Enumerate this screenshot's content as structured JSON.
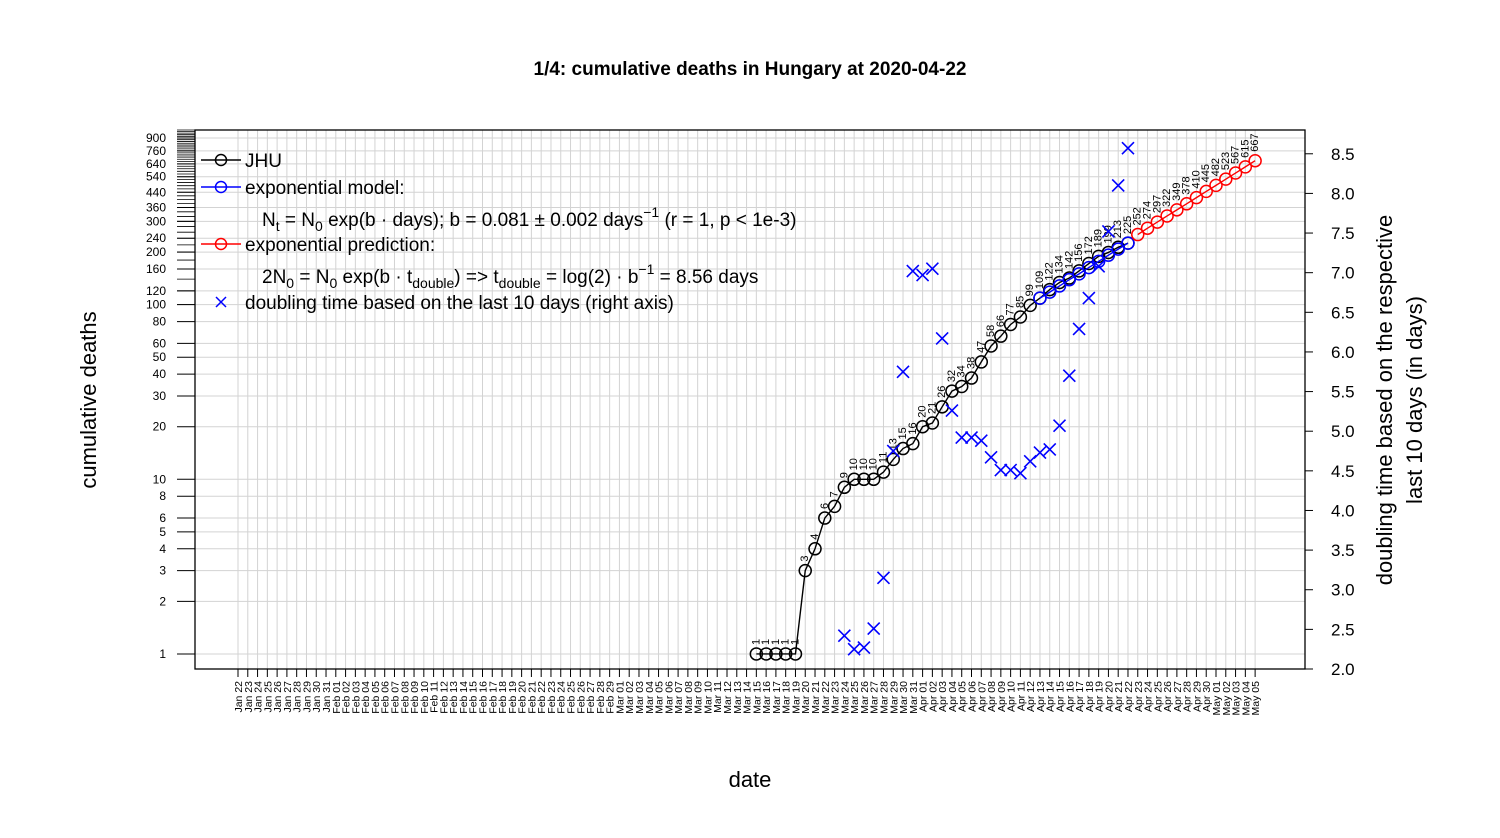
{
  "chart_data": {
    "type": "scatter",
    "title": "1/4: cumulative deaths in Hungary at 2020-04-22",
    "xlabel": "date",
    "ylabel": "cumulative deaths",
    "ylabel_right_line1": "doubling time based on the respective",
    "ylabel_right_line2": "last 10 days (in days)",
    "y_scale": "log",
    "ylim": [
      0.82,
      1000
    ],
    "y2lim": [
      2.0,
      8.8
    ],
    "grid": true,
    "legend_position": "top-left",
    "dates": [
      "Jan 22",
      "Jan 23",
      "Jan 24",
      "Jan 25",
      "Jan 26",
      "Jan 27",
      "Jan 28",
      "Jan 29",
      "Jan 30",
      "Jan 31",
      "Feb 01",
      "Feb 02",
      "Feb 03",
      "Feb 04",
      "Feb 05",
      "Feb 06",
      "Feb 07",
      "Feb 08",
      "Feb 09",
      "Feb 10",
      "Feb 11",
      "Feb 12",
      "Feb 13",
      "Feb 14",
      "Feb 15",
      "Feb 16",
      "Feb 17",
      "Feb 18",
      "Feb 19",
      "Feb 20",
      "Feb 21",
      "Feb 22",
      "Feb 23",
      "Feb 24",
      "Feb 25",
      "Feb 26",
      "Feb 27",
      "Feb 28",
      "Feb 29",
      "Mar 01",
      "Mar 02",
      "Mar 03",
      "Mar 04",
      "Mar 05",
      "Mar 06",
      "Mar 07",
      "Mar 08",
      "Mar 09",
      "Mar 10",
      "Mar 11",
      "Mar 12",
      "Mar 13",
      "Mar 14",
      "Mar 15",
      "Mar 16",
      "Mar 17",
      "Mar 18",
      "Mar 19",
      "Mar 20",
      "Mar 21",
      "Mar 22",
      "Mar 23",
      "Mar 24",
      "Mar 25",
      "Mar 26",
      "Mar 27",
      "Mar 28",
      "Mar 29",
      "Mar 30",
      "Mar 31",
      "Apr 01",
      "Apr 02",
      "Apr 03",
      "Apr 04",
      "Apr 05",
      "Apr 06",
      "Apr 07",
      "Apr 08",
      "Apr 09",
      "Apr 10",
      "Apr 11",
      "Apr 12",
      "Apr 13",
      "Apr 14",
      "Apr 15",
      "Apr 16",
      "Apr 17",
      "Apr 18",
      "Apr 19",
      "Apr 20",
      "Apr 21",
      "Apr 22",
      "Apr 23",
      "Apr 24",
      "Apr 25",
      "Apr 26",
      "Apr 27",
      "Apr 28",
      "Apr 29",
      "Apr 30",
      "May 01",
      "May 02",
      "May 03",
      "May 04",
      "May 05"
    ],
    "y_ticks": [
      1,
      2,
      3,
      4,
      5,
      6,
      8,
      10,
      20,
      30,
      40,
      50,
      60,
      80,
      100,
      120,
      160,
      200,
      240,
      300,
      360,
      440,
      540,
      640,
      760,
      900
    ],
    "y2_ticks": [
      "2.0",
      "2.5",
      "3.0",
      "3.5",
      "4.0",
      "4.5",
      "5.0",
      "5.5",
      "6.0",
      "6.5",
      "7.0",
      "7.5",
      "8.0",
      "8.5"
    ],
    "series": [
      {
        "name": "JHU",
        "color": "#000000",
        "marker": "circle",
        "x": [
          "Mar 15",
          "Mar 16",
          "Mar 17",
          "Mar 18",
          "Mar 19",
          "Mar 20",
          "Mar 21",
          "Mar 22",
          "Mar 23",
          "Mar 24",
          "Mar 25",
          "Mar 26",
          "Mar 27",
          "Mar 28",
          "Mar 29",
          "Mar 30",
          "Mar 31",
          "Apr 01",
          "Apr 02",
          "Apr 03",
          "Apr 04",
          "Apr 05",
          "Apr 06",
          "Apr 07",
          "Apr 08",
          "Apr 09",
          "Apr 10",
          "Apr 11",
          "Apr 12",
          "Apr 13",
          "Apr 14",
          "Apr 15",
          "Apr 16",
          "Apr 17",
          "Apr 18",
          "Apr 19",
          "Apr 20",
          "Apr 21",
          "Apr 22"
        ],
        "values": [
          1,
          1,
          1,
          1,
          1,
          3,
          4,
          6,
          7,
          9,
          10,
          10,
          10,
          11,
          13,
          15,
          16,
          20,
          21,
          26,
          32,
          34,
          38,
          47,
          58,
          66,
          77,
          85,
          99,
          109,
          122,
          134,
          142,
          156,
          172,
          189,
          199,
          213,
          225
        ],
        "labels": [
          "1",
          "1",
          "1",
          "1",
          "1",
          "3",
          "4",
          "6",
          "7",
          "9",
          "10",
          "10",
          "10",
          "11",
          "13",
          "15",
          "16",
          "20",
          "21",
          "26",
          "32",
          "34",
          "38",
          "47",
          "58",
          "66",
          "77",
          "85",
          "99",
          "109",
          "122",
          "134",
          "142",
          "156",
          "172",
          "189",
          "199",
          "213",
          "225"
        ]
      },
      {
        "name": "exponential model:",
        "color": "#0000ff",
        "marker": "circle",
        "x": [
          "Apr 13",
          "Apr 14",
          "Apr 15",
          "Apr 16",
          "Apr 17",
          "Apr 18",
          "Apr 19",
          "Apr 20",
          "Apr 21",
          "Apr 22"
        ],
        "values": [
          109,
          118,
          128,
          139,
          150,
          163,
          177,
          192,
          208,
          225
        ]
      },
      {
        "name": "exponential prediction:",
        "color": "#ff0000",
        "marker": "circle",
        "x": [
          "Apr 23",
          "Apr 24",
          "Apr 25",
          "Apr 26",
          "Apr 27",
          "Apr 28",
          "Apr 29",
          "Apr 30",
          "May 01",
          "May 02",
          "May 03",
          "May 04",
          "May 05"
        ],
        "values": [
          252,
          274,
          297,
          322,
          349,
          378,
          410,
          445,
          482,
          523,
          567,
          615,
          667
        ],
        "labels": [
          "252",
          "274",
          "297",
          "322",
          "349",
          "378",
          "410",
          "445",
          "482",
          "523",
          "567",
          "615",
          "667"
        ]
      },
      {
        "name": "doubling time based on the last  10  days (right axis)",
        "color": "#0000ff",
        "marker": "x",
        "axis": "right",
        "x": [
          "Mar 24",
          "Mar 25",
          "Mar 26",
          "Mar 27",
          "Mar 28",
          "Mar 29",
          "Mar 30",
          "Mar 31",
          "Apr 01",
          "Apr 02",
          "Apr 03",
          "Apr 04",
          "Apr 05",
          "Apr 06",
          "Apr 07",
          "Apr 08",
          "Apr 09",
          "Apr 10",
          "Apr 11",
          "Apr 12",
          "Apr 13",
          "Apr 14",
          "Apr 15",
          "Apr 16",
          "Apr 17",
          "Apr 18",
          "Apr 19",
          "Apr 20",
          "Apr 21",
          "Apr 22"
        ],
        "values": [
          2.42,
          2.25,
          2.27,
          2.51,
          3.15,
          4.75,
          5.75,
          7.02,
          6.97,
          7.05,
          6.17,
          5.26,
          4.92,
          4.92,
          4.88,
          4.67,
          4.51,
          4.51,
          4.47,
          4.62,
          4.73,
          4.77,
          5.07,
          5.7,
          6.29,
          6.68,
          7.08,
          7.52,
          8.1,
          8.57
        ]
      }
    ],
    "legend": {
      "jhu": "JHU",
      "model": "exponential model:",
      "model_formula_a": "N",
      "model_formula_a_sub": "t",
      "model_formula_b": " = N",
      "model_formula_b_sub": "0",
      "model_formula_c": " exp(b · days); b = 0.081 ± 0.002 days",
      "model_formula_c_sup": "−1",
      "model_formula_d": " (r = 1, p < 1e-3)",
      "prediction": "exponential prediction:",
      "pred_formula_a": "2N",
      "pred_formula_a_sub": "0",
      "pred_formula_b": " = N",
      "pred_formula_b_sub": "0",
      "pred_formula_c": " exp(b · t",
      "pred_formula_c_sub": "double",
      "pred_formula_d": ") => t",
      "pred_formula_d_sub": "double",
      "pred_formula_e": " = log(2) · b",
      "pred_formula_e_sup": "−1",
      "pred_formula_f": " = 8.56 days",
      "doubling": "doubling time based on the last  10  days (right axis)"
    }
  }
}
